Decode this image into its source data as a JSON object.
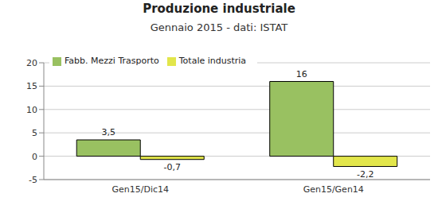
{
  "chart_data": {
    "type": "bar",
    "title": "Produzione industriale",
    "subtitle": "Gennaio 2015 - dati: ISTAT",
    "categories": [
      "Gen15/Dic14",
      "Gen15/Gen14"
    ],
    "series": [
      {
        "name": "Fabb. Mezzi Trasporto",
        "color": "#99c161",
        "values": [
          3.5,
          16
        ],
        "value_labels": [
          "3,5",
          "16"
        ]
      },
      {
        "name": "Totale industria",
        "color": "#e2e64b",
        "values": [
          -0.7,
          -2.2
        ],
        "value_labels": [
          "-0,7",
          "-2,2"
        ]
      }
    ],
    "ylim": [
      -5,
      20
    ],
    "yticks": [
      -5,
      0,
      5,
      10,
      15,
      20
    ],
    "grid": true,
    "legend": "upper left",
    "data_labels": true
  }
}
